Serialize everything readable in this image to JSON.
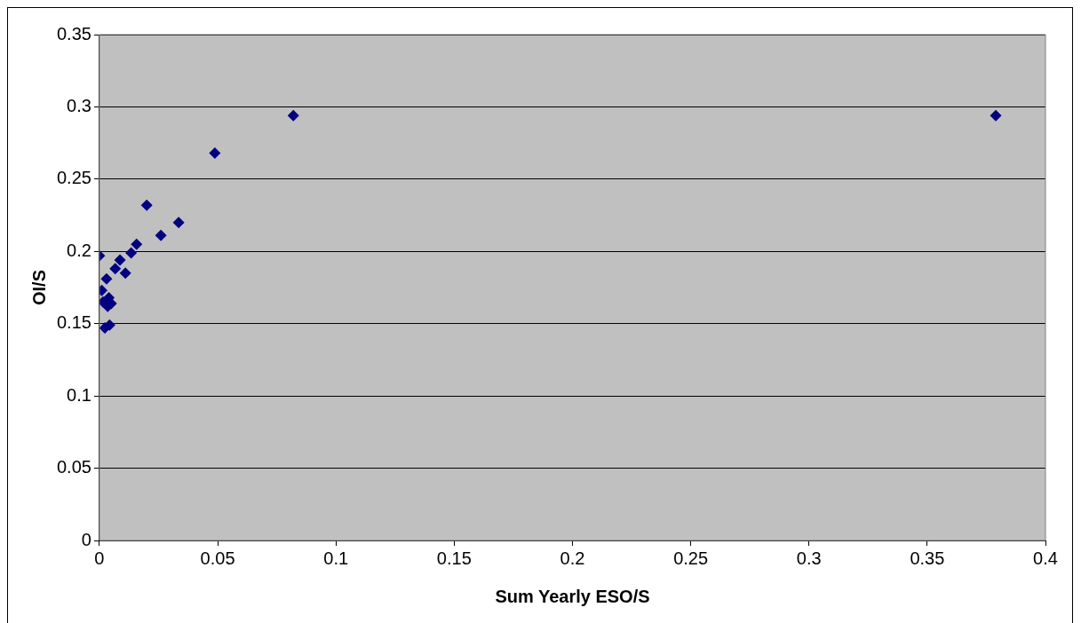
{
  "chart_data": {
    "type": "scatter",
    "xlabel": "Sum Yearly ESO/S",
    "ylabel": "OI/S",
    "series": [
      {
        "color": "#000080",
        "x": [
          0,
          0.02,
          0.0335,
          0.026,
          0.0157,
          0.0134,
          0.011,
          0.0087,
          0.0067,
          0.003,
          0.001,
          0.0015,
          0.0035,
          0.005,
          0.004,
          0.0023,
          0.0043,
          0.0488,
          0.082,
          0.379
        ],
        "values": [
          0.197,
          0.232,
          0.22,
          0.211,
          0.205,
          0.199,
          0.185,
          0.194,
          0.188,
          0.181,
          0.173,
          0.165,
          0.162,
          0.164,
          0.168,
          0.147,
          0.149,
          0.268,
          0.294,
          0.294
        ]
      }
    ],
    "xlim": [
      0,
      0.4
    ],
    "xticks": [
      0,
      0.05,
      0.1,
      0.15,
      0.2,
      0.25,
      0.3,
      0.35,
      0.4
    ],
    "ylim": [
      0,
      0.35
    ],
    "yticks": [
      0,
      0.05,
      0.1,
      0.15,
      0.2,
      0.25,
      0.3,
      0.35
    ],
    "grid": "y",
    "marker": "diamond",
    "legend": false
  }
}
